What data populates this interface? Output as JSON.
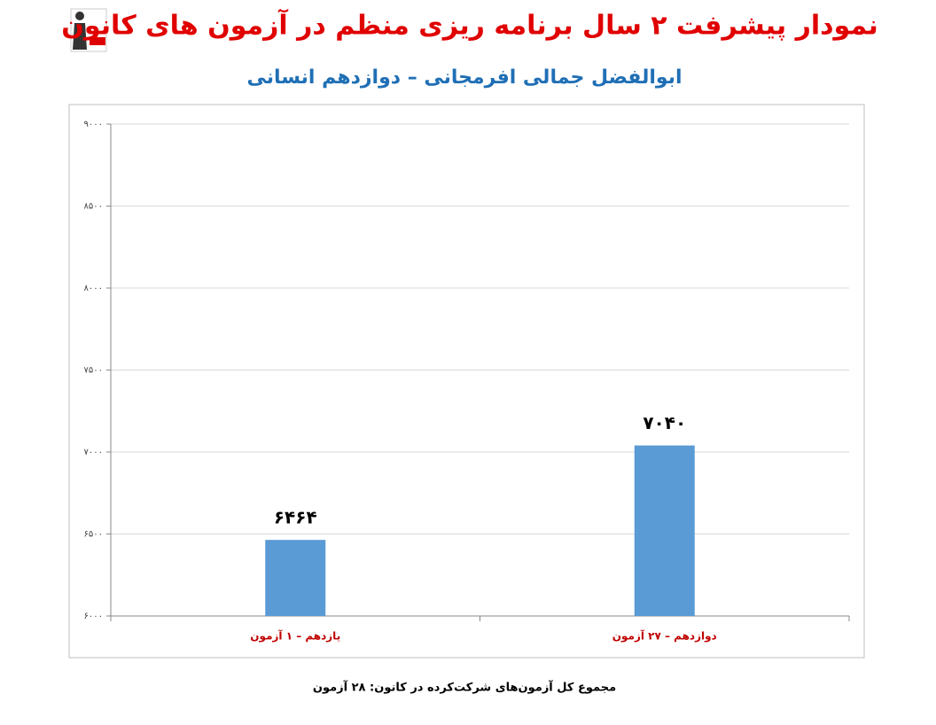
{
  "chart_data": {
    "type": "bar",
    "title": "نمودار پیشرفت ۲ سال برنامه ریزی منظم در آزمون های کانون",
    "subtitle": "ابوالفضل جمالی افرمجانی – دوازدهم انسانی",
    "footer": "مجموع کل آزمون‌های شرکت‌کرده در کانون: ۲۸ آزمون",
    "logo": [
      "کانون",
      "فرهنگی",
      "آموزش",
      "قلم چی"
    ],
    "categories": [
      "یازدهم – ۱ آزمون",
      "دوازدهم – ۲۷ آزمون"
    ],
    "values": [
      6464,
      7040
    ],
    "value_labels": [
      "۶۴۶۴",
      "۷۰۴۰"
    ],
    "color": "#5b9bd5",
    "ylim": [
      6000,
      9000
    ],
    "yticks": [
      {
        "value": 6000,
        "label": "۶۰۰۰"
      },
      {
        "value": 6500,
        "label": "۶۵۰۰"
      },
      {
        "value": 7000,
        "label": "۷۰۰۰"
      },
      {
        "value": 7500,
        "label": "۷۵۰۰"
      },
      {
        "value": 8000,
        "label": "۸۰۰۰"
      },
      {
        "value": 8500,
        "label": "۸۵۰۰"
      },
      {
        "value": 9000,
        "label": "۹۰۰۰"
      }
    ],
    "grid": true
  }
}
